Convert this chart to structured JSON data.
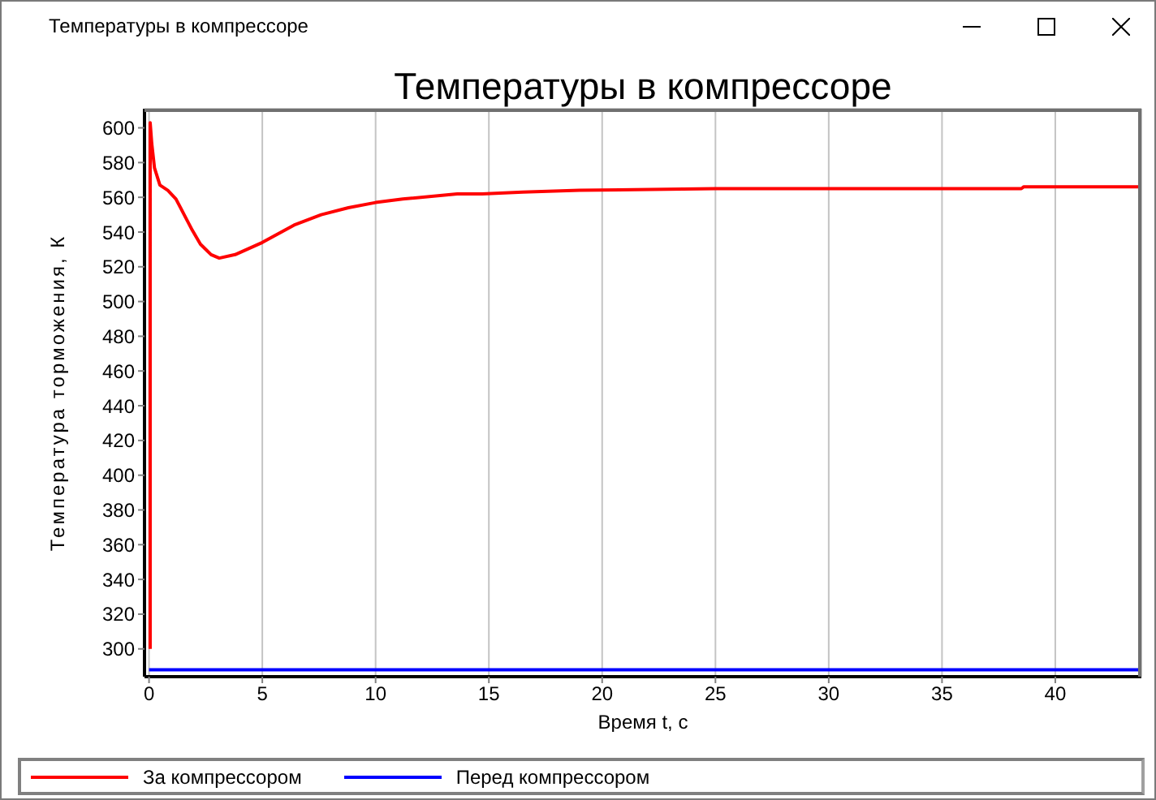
{
  "chart_data": {
    "type": "line",
    "title": "Температуры в компрессоре",
    "xlabel": "Время t, с",
    "ylabel": "Температура торможения, К",
    "annotations": [
      "Температуры в компрессоре"
    ],
    "xlim": [
      -0.2,
      43.8
    ],
    "xticks": [
      0,
      5,
      10,
      15,
      20,
      25,
      30,
      35,
      40
    ],
    "ylim": [
      284,
      611
    ],
    "yticks": [
      300,
      320,
      340,
      360,
      380,
      400,
      420,
      440,
      460,
      480,
      500,
      520,
      540,
      560,
      580,
      600
    ],
    "grid": true,
    "legend": "bottom",
    "marker": "none",
    "line_style": "solid",
    "series": [
      {
        "name": "За компрессором",
        "color": "#ff0000",
        "x": [
          0.05,
          0.05,
          0.12,
          0.24,
          0.48,
          0.83,
          1.19,
          1.55,
          1.91,
          2.27,
          2.74,
          3.1,
          3.8,
          5.0,
          6.4,
          7.6,
          8.8,
          10.0,
          11.2,
          13.6,
          14.7,
          16.5,
          19,
          25,
          38.5,
          38.6,
          43.7
        ],
        "values": [
          300,
          603,
          591,
          577,
          567,
          564,
          559,
          550,
          541,
          533,
          527,
          525,
          527,
          534,
          544,
          550,
          554,
          557,
          559,
          562,
          562,
          563,
          564,
          565,
          565,
          566,
          566
        ]
      },
      {
        "name": "Перед компрессором",
        "color": "#0000ff",
        "x": [
          0,
          43.7
        ],
        "values": [
          288,
          288
        ]
      }
    ]
  }
}
